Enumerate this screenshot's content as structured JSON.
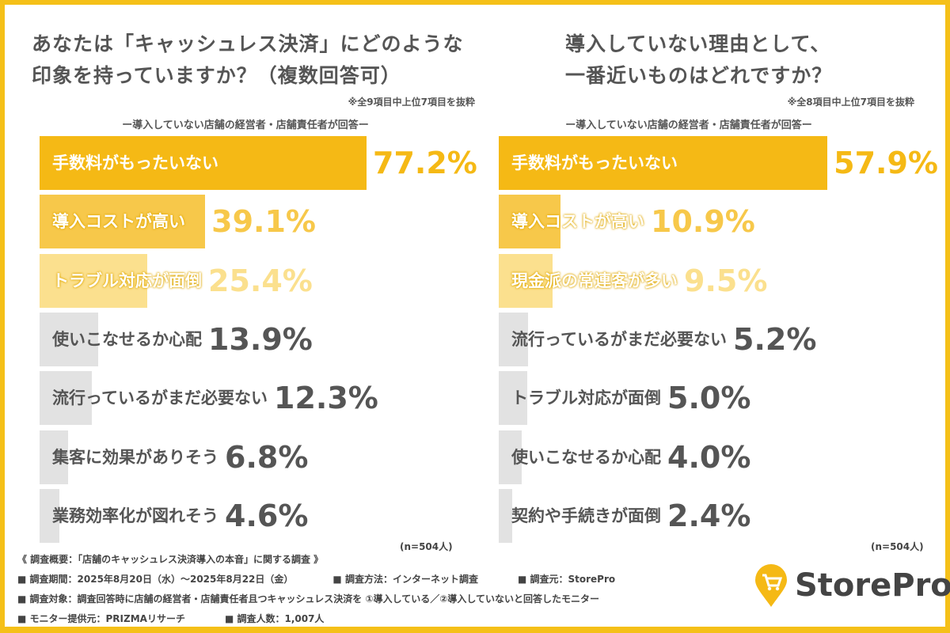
{
  "chart_data": [
    {
      "type": "bar",
      "orientation": "horizontal",
      "title": "あなたは「キャッシュレス決済」にどのような印象を持っていますか？（複数回答可）",
      "note": "※全9項目中上位7項目を抜粋",
      "subtitle": "ー導入していない店舗の経営者・店舗責任者が回答ー",
      "categories": [
        "手数料がもったいない",
        "導入コストが高い",
        "トラブル対応が面倒",
        "使いこなせるか心配",
        "流行っているがまだ必要ない",
        "集客に効果がありそう",
        "業務効率化が図れそう"
      ],
      "values": [
        77.2,
        39.1,
        25.4,
        13.9,
        12.3,
        6.8,
        4.6
      ],
      "labels": [
        "77.2%",
        "39.1%",
        "25.4%",
        "13.9%",
        "12.3%",
        "6.8%",
        "4.6%"
      ],
      "sample": "(n=504人)"
    },
    {
      "type": "bar",
      "orientation": "horizontal",
      "title": "導入していない理由として、一番近いものはどれですか？",
      "note": "※全8項目中上位7項目を抜粋",
      "subtitle": "ー導入していない店舗の経営者・店舗責任者が回答ー",
      "categories": [
        "手数料がもったいない",
        "導入コストが高い",
        "現金派の常連客が多い",
        "流行っているがまだ必要ない",
        "トラブル対応が面倒",
        "使いこなせるか心配",
        "契約や手続きが面倒"
      ],
      "values": [
        57.9,
        10.9,
        9.5,
        5.2,
        5.0,
        4.0,
        2.4
      ],
      "labels": [
        "57.9%",
        "10.9%",
        "9.5%",
        "5.2%",
        "5.0%",
        "4.0%",
        "2.4%"
      ],
      "sample": "(n=504人)"
    }
  ],
  "titles": {
    "left_l1": "あなたは「キャッシュレス決済」にどのような",
    "left_l2": "印象を持っていますか？（複数回答可）",
    "right_l1": "導入していない理由として、",
    "right_l2": "一番近いものはどれですか？"
  },
  "colors": {
    "rank1": "#f5b915",
    "rank2": "#f7c84a",
    "rank3": "#fbe08e",
    "other": "#e2e2e2",
    "frame": "#f5c018"
  },
  "footer": {
    "heading": "《 調査概要：「店舗のキャッシュレス決済導入の本音」に関する調査 》",
    "period": "■ 調査期間：2025年8月20日（水）～2025年8月22日（金）",
    "method": "■ 調査方法：インターネット調査",
    "source": "■ 調査元：StorePro",
    "target": "■ 調査対象：調査回答時に店舗の経営者・店舗責任者且つキャッシュレス決済を ①導入している／②導入していないと回答したモニター",
    "provider": "■ モニター提供元：PRIZMAリサーチ",
    "count": "■ 調査人数：1,007人"
  },
  "logo": {
    "text": "StorePro",
    "icon": "shopping-cart-pin-icon"
  }
}
